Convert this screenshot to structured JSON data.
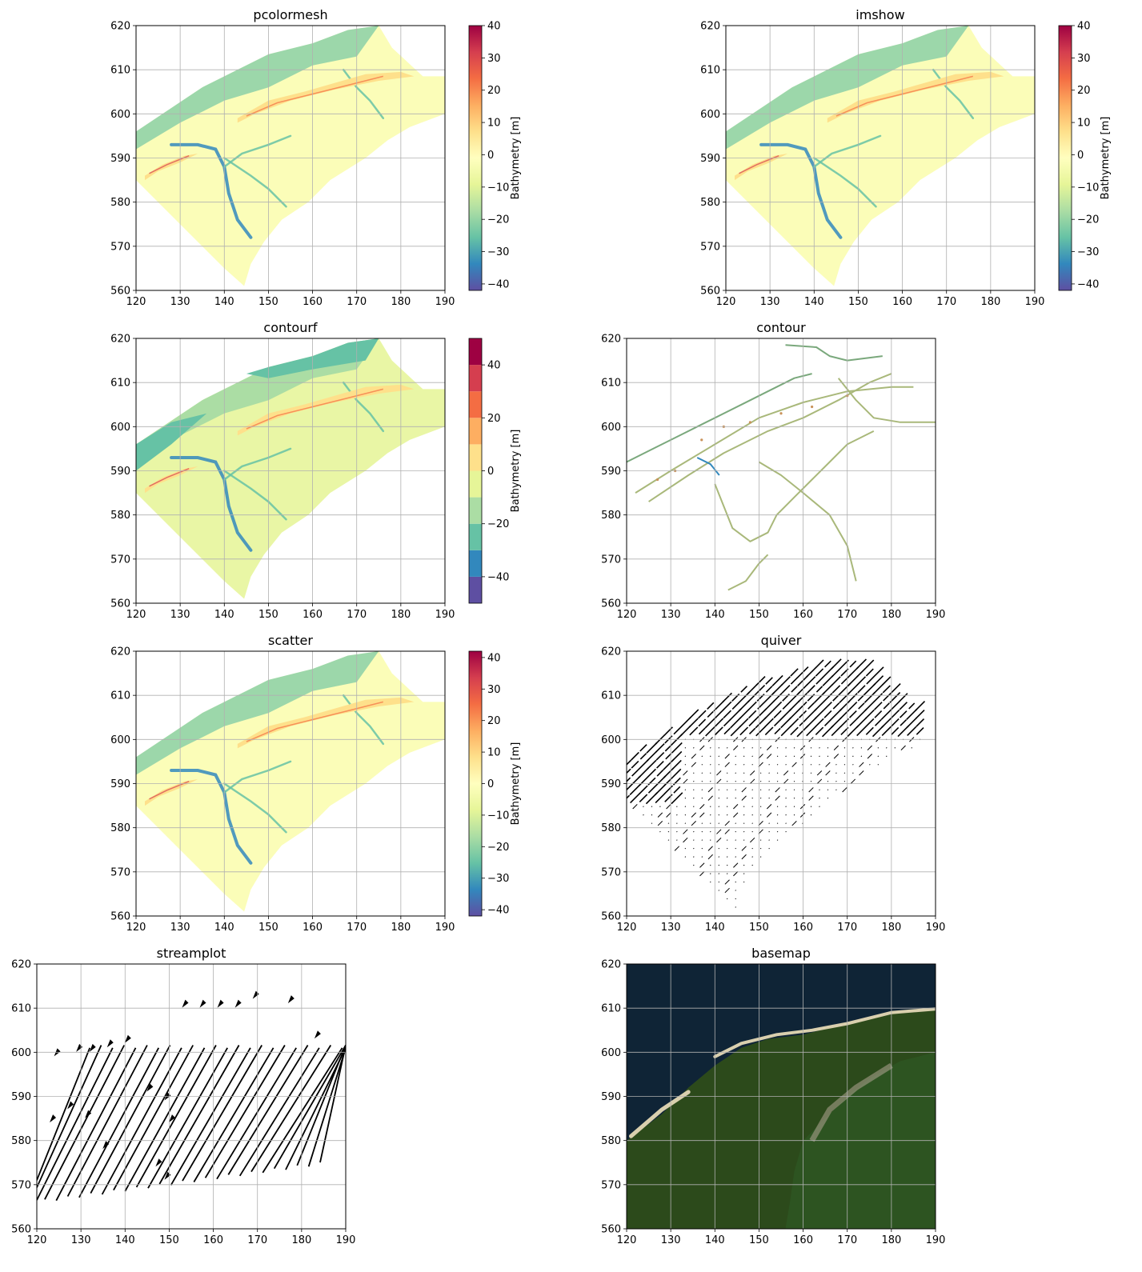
{
  "figure": {
    "axis_x_ticks": [
      "120",
      "130",
      "140",
      "150",
      "160",
      "170",
      "180",
      "190"
    ],
    "axis_y_ticks": [
      "560",
      "570",
      "580",
      "590",
      "600",
      "610",
      "620"
    ],
    "xlim": [
      120,
      190
    ],
    "ylim": [
      560,
      620
    ],
    "grid": true
  },
  "panels": [
    {
      "title": "pcolormesh",
      "kind": "mesh"
    },
    {
      "title": "imshow",
      "kind": "mesh"
    },
    {
      "title": "contourf",
      "kind": "filled"
    },
    {
      "title": "contour",
      "kind": "lines"
    },
    {
      "title": "scatter",
      "kind": "mesh"
    },
    {
      "title": "quiver",
      "kind": "arrows"
    },
    {
      "title": "streamplot",
      "kind": "streams"
    },
    {
      "title": "basemap",
      "kind": "satellite"
    }
  ],
  "colorbars": [
    {
      "panel": "pcolormesh",
      "label": "Bathymetry [m]",
      "ticks": [
        "40",
        "30",
        "20",
        "10",
        "0",
        "−10",
        "−20",
        "−30",
        "−40"
      ],
      "range": [
        -42,
        40
      ]
    },
    {
      "panel": "imshow",
      "label": "Bathymetry [m]",
      "ticks": [
        "40",
        "30",
        "20",
        "10",
        "0",
        "−10",
        "−20",
        "−30",
        "−40"
      ],
      "range": [
        -42,
        40
      ]
    },
    {
      "panel": "contourf",
      "label": "Bathymetry [m]",
      "ticks": [
        "40",
        "20",
        "0",
        "−20",
        "−40"
      ],
      "range": [
        -50,
        50
      ]
    },
    {
      "panel": "scatter",
      "label": "Bathymetry [m]",
      "ticks": [
        "40",
        "30",
        "20",
        "10",
        "0",
        "−10",
        "−20",
        "−30",
        "−40"
      ],
      "range": [
        -42,
        42
      ]
    }
  ],
  "colors": {
    "cmap": "Spectral",
    "deep": "#5e4fa2",
    "shallow": "#ffffbf",
    "high": "#9e0142",
    "ocean_sat": "#0f2436",
    "land_sat": "#2f4a1c"
  },
  "chart_data": [
    {
      "type": "heatmap",
      "title": "pcolormesh",
      "xlabel": "",
      "ylabel": "",
      "xlim": [
        120,
        190
      ],
      "ylim": [
        560,
        620
      ],
      "colorbar_label": "Bathymetry [m]",
      "value_range": [
        -42,
        40
      ]
    },
    {
      "type": "heatmap",
      "title": "imshow",
      "xlabel": "",
      "ylabel": "",
      "xlim": [
        120,
        190
      ],
      "ylim": [
        560,
        620
      ],
      "colorbar_label": "Bathymetry [m]",
      "value_range": [
        -42,
        40
      ]
    },
    {
      "type": "heatmap",
      "title": "contourf",
      "xlabel": "",
      "ylabel": "",
      "xlim": [
        120,
        190
      ],
      "ylim": [
        560,
        620
      ],
      "colorbar_label": "Bathymetry [m]",
      "levels": [
        -50,
        -40,
        -30,
        -20,
        -10,
        0,
        10,
        20,
        30,
        40,
        50
      ]
    },
    {
      "type": "line",
      "title": "contour",
      "xlabel": "",
      "ylabel": "",
      "xlim": [
        120,
        190
      ],
      "ylim": [
        560,
        620
      ]
    },
    {
      "type": "scatter",
      "title": "scatter",
      "xlabel": "",
      "ylabel": "",
      "xlim": [
        120,
        190
      ],
      "ylim": [
        560,
        620
      ],
      "colorbar_label": "Bathymetry [m]",
      "value_range": [
        -42,
        42
      ]
    },
    {
      "type": "scatter",
      "title": "quiver",
      "xlabel": "",
      "ylabel": "",
      "xlim": [
        120,
        190
      ],
      "ylim": [
        560,
        620
      ]
    },
    {
      "type": "line",
      "title": "streamplot",
      "xlabel": "",
      "ylabel": "",
      "xlim": [
        120,
        190
      ],
      "ylim": [
        560,
        620
      ]
    },
    {
      "type": "heatmap",
      "title": "basemap",
      "xlabel": "",
      "ylabel": "",
      "xlim": [
        120,
        190
      ],
      "ylim": [
        560,
        620
      ]
    }
  ]
}
